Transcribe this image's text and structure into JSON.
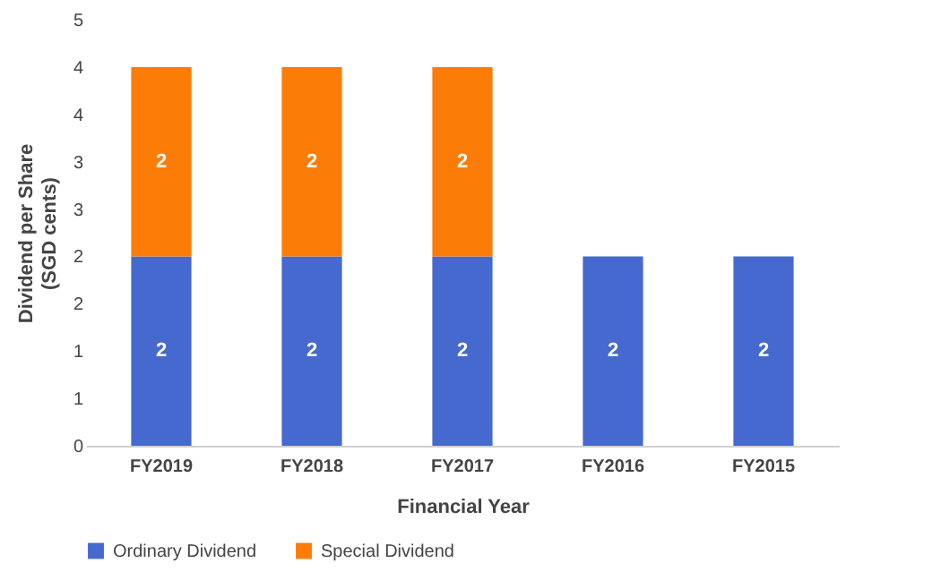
{
  "chart_data": {
    "type": "bar",
    "stacked": true,
    "xlabel": "Financial Year",
    "ylabel": "Dividend per Share\n(SGD cents)",
    "categories": [
      "FY2019",
      "FY2018",
      "FY2017",
      "FY2016",
      "FY2015"
    ],
    "series": [
      {
        "name": "Ordinary Dividend",
        "color": "#4569cf",
        "values": [
          2,
          2,
          2,
          2,
          2
        ]
      },
      {
        "name": "Special Dividend",
        "color": "#fb7d07",
        "values": [
          2,
          2,
          2,
          null,
          null
        ]
      }
    ],
    "ylim": [
      0,
      4.5
    ],
    "yticks": [
      0,
      {
        "value": 0.5,
        "label": "1"
      },
      1,
      {
        "value": 1.5,
        "label": "2"
      },
      2,
      {
        "value": 2.5,
        "label": "3"
      },
      3,
      {
        "value": 3.5,
        "label": "4"
      },
      4,
      {
        "value": 4.5,
        "label": "5"
      }
    ],
    "data_labels": true,
    "legend": "bottom",
    "grid": false
  }
}
